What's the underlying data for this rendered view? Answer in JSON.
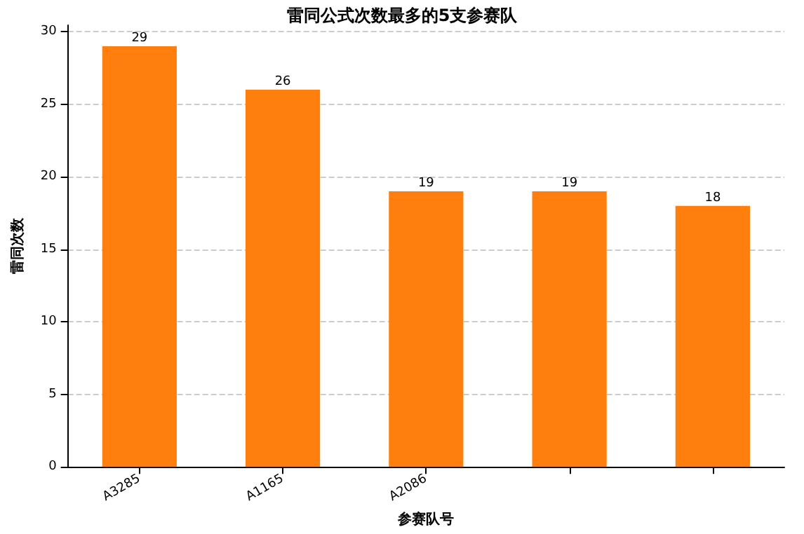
{
  "chart_data": {
    "type": "bar",
    "title": "雷同公式次数最多的5支参赛队",
    "xlabel": "参赛队号",
    "ylabel": "雷同次数",
    "categories": [
      "A3285",
      "A1165",
      "A2086",
      null,
      null
    ],
    "values": [
      29,
      26,
      19,
      19,
      18
    ],
    "color": "#ff7f0e",
    "data_labels": true,
    "ylim": [
      0,
      30.45
    ],
    "yticks": [
      0,
      5,
      10,
      15,
      20,
      25,
      30
    ],
    "grid": "y"
  }
}
